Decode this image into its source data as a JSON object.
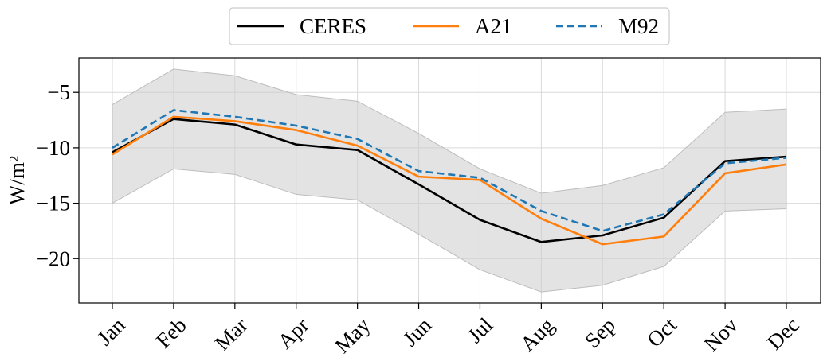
{
  "chart_data": {
    "type": "line",
    "title": "",
    "xlabel": "",
    "ylabel": "W/m²",
    "categories": [
      "Jan",
      "Feb",
      "Mar",
      "Apr",
      "May",
      "Jun",
      "Jul",
      "Aug",
      "Sep",
      "Oct",
      "Nov",
      "Dec"
    ],
    "ylim": [
      -24.0,
      -1.9
    ],
    "yticks": [
      -20,
      -15,
      -10,
      -5
    ],
    "ytick_labels": [
      "−20",
      "−15",
      "−10",
      "−5"
    ],
    "grid": true,
    "legend_position": "top-center (outside, above plot)",
    "series": [
      {
        "name": "CERES",
        "color": "#000000",
        "style": "solid",
        "values": [
          -10.4,
          -7.4,
          -7.9,
          -9.7,
          -10.2,
          -13.3,
          -16.5,
          -18.5,
          -17.9,
          -16.3,
          -11.2,
          -10.8
        ]
      },
      {
        "name": "A21",
        "color": "#ff7f0e",
        "style": "solid",
        "values": [
          -10.6,
          -7.2,
          -7.6,
          -8.4,
          -9.8,
          -12.6,
          -12.9,
          -16.4,
          -18.7,
          -18.0,
          -12.3,
          -11.5
        ]
      },
      {
        "name": "M92",
        "color": "#1f77b4",
        "style": "dashed",
        "values": [
          -10.0,
          -6.6,
          -7.2,
          -8.0,
          -9.2,
          -12.1,
          -12.7,
          -15.7,
          -17.5,
          -16.0,
          -11.4,
          -10.9
        ]
      }
    ],
    "band": {
      "color": "#cccccc",
      "upper": [
        -6.1,
        -2.9,
        -3.5,
        -5.2,
        -5.8,
        -8.7,
        -11.9,
        -14.1,
        -13.4,
        -11.8,
        -6.8,
        -6.5
      ],
      "lower": [
        -15.0,
        -11.9,
        -12.4,
        -14.2,
        -14.7,
        -17.8,
        -21.0,
        -23.0,
        -22.4,
        -20.7,
        -15.7,
        -15.5
      ]
    }
  }
}
